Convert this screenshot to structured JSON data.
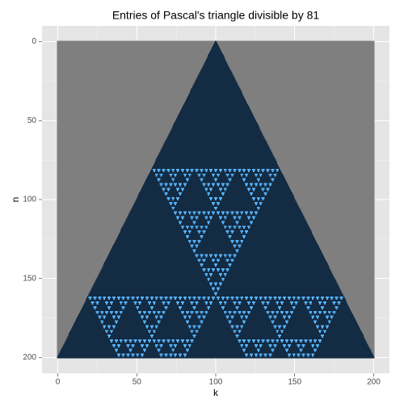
{
  "chart_data": {
    "type": "raster",
    "title": "Entries of Pascal's triangle divisible by 81",
    "x_label": "k",
    "y_label": "n",
    "modulus": 81,
    "n_range": [
      0,
      200
    ],
    "xlim": [
      -10,
      210
    ],
    "xticks": [
      0,
      50,
      100,
      150,
      200
    ],
    "ylim": [
      210,
      -10
    ],
    "yticks": [
      0,
      50,
      100,
      150,
      200
    ],
    "na_color": "#7f7f7f",
    "fill_colors": [
      "#132b43",
      "#56b1f7"
    ],
    "grid": true
  }
}
